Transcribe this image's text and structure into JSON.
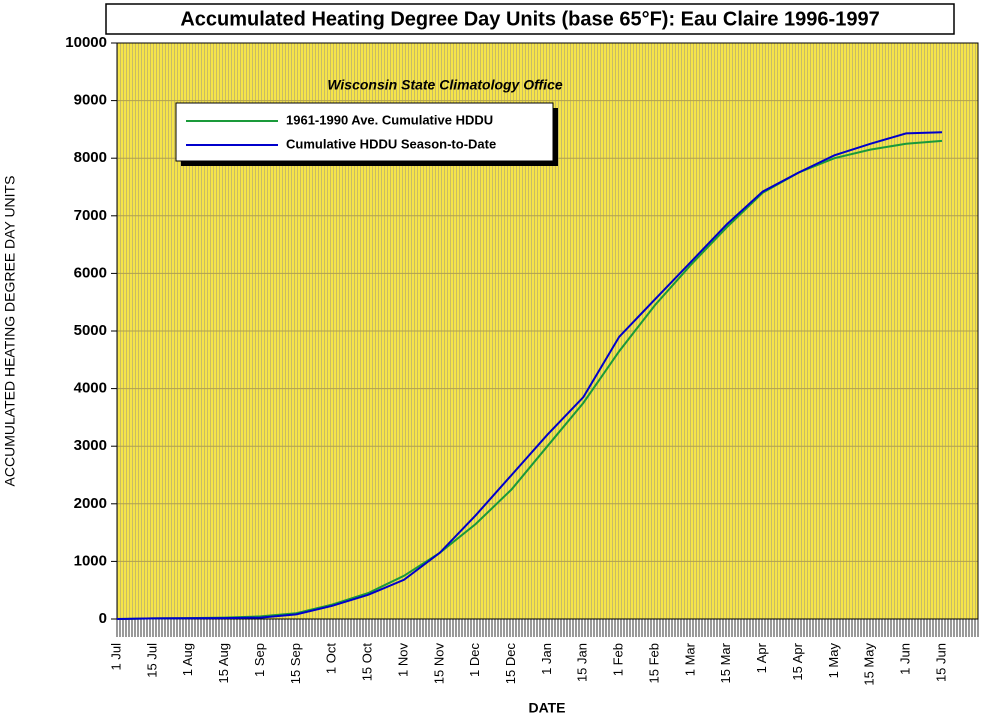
{
  "chart_data": {
    "type": "line",
    "title": "Accumulated Heating Degree Day Units (base 65°F): Eau Claire 1996-1997",
    "subtitle": "Wisconsin State Climatology Office",
    "x_label": "DATE",
    "y_label": "ACCUMULATED HEATING DEGREE DAY UNITS",
    "categories": [
      "1 Jul",
      "15 Jul",
      "1 Aug",
      "15 Aug",
      "1 Sep",
      "15 Sep",
      "1 Oct",
      "15 Oct",
      "1 Nov",
      "15 Nov",
      "1 Dec",
      "15 Dec",
      "1 Jan",
      "15 Jan",
      "1 Feb",
      "15 Feb",
      "1 Mar",
      "15 Mar",
      "1 Apr",
      "15 Apr",
      "1 May",
      "15 May",
      "1 Jun",
      "15 Jun"
    ],
    "series": [
      {
        "name": "1961-1990 Ave. Cumulative HDDU",
        "color": "#1a9a3a",
        "values": [
          0,
          10,
          15,
          25,
          45,
          100,
          250,
          450,
          750,
          1150,
          1650,
          2250,
          3000,
          3750,
          4650,
          5450,
          6150,
          6800,
          7400,
          7750,
          8000,
          8150,
          8250,
          8300
        ]
      },
      {
        "name": "Cumulative HDDU Season-to-Date",
        "color": "#0000cc",
        "values": [
          0,
          10,
          12,
          15,
          25,
          80,
          230,
          420,
          680,
          1150,
          1800,
          2500,
          3200,
          3850,
          4900,
          5550,
          6200,
          6850,
          7420,
          7750,
          8050,
          8250,
          8430,
          8450
        ]
      }
    ],
    "ylim": [
      0,
      10000
    ],
    "yticks": [
      0,
      1000,
      2000,
      3000,
      4000,
      5000,
      6000,
      7000,
      8000,
      9000,
      10000
    ],
    "grid": true,
    "legend": "upper left",
    "background": "#f5e44a"
  }
}
